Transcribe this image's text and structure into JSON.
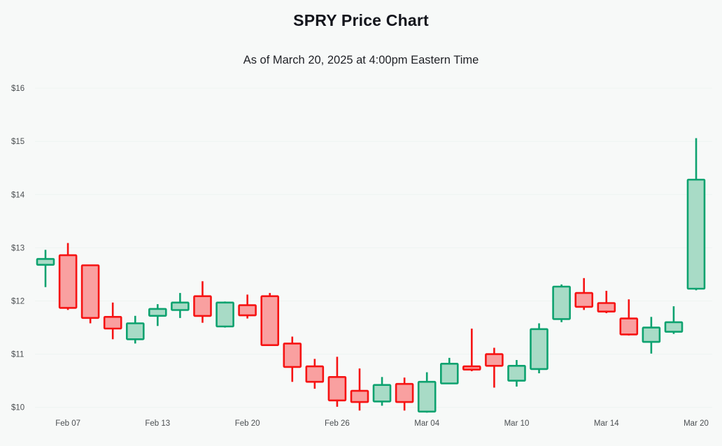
{
  "header": {
    "title": "SPRY Price Chart",
    "subtitle": "As of March 20, 2025 at 4:00pm Eastern Time"
  },
  "chart_data": {
    "type": "candlestick",
    "title": "SPRY Price Chart",
    "subtitle": "As of March 20, 2025 at 4:00pm Eastern Time",
    "xlabel": "",
    "ylabel": "",
    "grid": false,
    "legend_position": "none",
    "y_axis": {
      "ticks": [
        {
          "label": "$16",
          "value": 16
        },
        {
          "label": "$15",
          "value": 15
        },
        {
          "label": "$14",
          "value": 14
        },
        {
          "label": "$13",
          "value": 13
        },
        {
          "label": "$12",
          "value": 12
        },
        {
          "label": "$11",
          "value": 11
        },
        {
          "label": "$10",
          "value": 10
        }
      ],
      "range": [
        9.85,
        16.2
      ],
      "currency": "USD"
    },
    "x_axis": {
      "ticks": [
        {
          "label": "Feb 07",
          "candle_index": 1
        },
        {
          "label": "Feb 13",
          "candle_index": 5
        },
        {
          "label": "Feb 20",
          "candle_index": 9
        },
        {
          "label": "Feb 26",
          "candle_index": 13
        },
        {
          "label": "Mar 04",
          "candle_index": 17
        },
        {
          "label": "Mar 10",
          "candle_index": 21
        },
        {
          "label": "Mar 14",
          "candle_index": 25
        },
        {
          "label": "Mar 20",
          "candle_index": 29
        }
      ]
    },
    "colors": {
      "up_stroke": "#0da26f",
      "up_fill": "#a8dbc6",
      "down_stroke": "#f61313",
      "down_fill": "#f9a0a0",
      "axis_text": "#4b4f52",
      "background": "#f7f9f8"
    },
    "candles": [
      {
        "date": "Feb 06",
        "open": 12.68,
        "high": 12.96,
        "low": 12.26,
        "close": 12.79
      },
      {
        "date": "Feb 07",
        "open": 12.86,
        "high": 13.09,
        "low": 11.83,
        "close": 11.87
      },
      {
        "date": "Feb 10",
        "open": 12.67,
        "high": 12.68,
        "low": 11.58,
        "close": 11.68
      },
      {
        "date": "Feb 11",
        "open": 11.7,
        "high": 11.97,
        "low": 11.28,
        "close": 11.48
      },
      {
        "date": "Feb 12",
        "open": 11.28,
        "high": 11.72,
        "low": 11.2,
        "close": 11.58
      },
      {
        "date": "Feb 13",
        "open": 11.72,
        "high": 11.94,
        "low": 11.53,
        "close": 11.85
      },
      {
        "date": "Feb 14",
        "open": 11.83,
        "high": 12.15,
        "low": 11.68,
        "close": 11.97
      },
      {
        "date": "Feb 18",
        "open": 12.09,
        "high": 12.37,
        "low": 11.59,
        "close": 11.72
      },
      {
        "date": "Feb 19",
        "open": 11.52,
        "high": 11.99,
        "low": 11.5,
        "close": 11.97
      },
      {
        "date": "Feb 20",
        "open": 11.92,
        "high": 12.12,
        "low": 11.67,
        "close": 11.73
      },
      {
        "date": "Feb 21",
        "open": 12.09,
        "high": 12.15,
        "low": 11.16,
        "close": 11.17
      },
      {
        "date": "Feb 24",
        "open": 11.2,
        "high": 11.33,
        "low": 10.48,
        "close": 10.76
      },
      {
        "date": "Feb 25",
        "open": 10.77,
        "high": 10.91,
        "low": 10.35,
        "close": 10.48
      },
      {
        "date": "Feb 26",
        "open": 10.57,
        "high": 10.95,
        "low": 10.01,
        "close": 10.13
      },
      {
        "date": "Feb 27",
        "open": 10.31,
        "high": 10.73,
        "low": 9.94,
        "close": 10.1
      },
      {
        "date": "Feb 28",
        "open": 10.11,
        "high": 10.57,
        "low": 10.03,
        "close": 10.42
      },
      {
        "date": "Mar 03",
        "open": 10.44,
        "high": 10.56,
        "low": 9.94,
        "close": 10.1
      },
      {
        "date": "Mar 04",
        "open": 9.92,
        "high": 10.66,
        "low": 9.9,
        "close": 10.48
      },
      {
        "date": "Mar 05",
        "open": 10.45,
        "high": 10.93,
        "low": 10.44,
        "close": 10.82
      },
      {
        "date": "Mar 06",
        "open": 10.77,
        "high": 11.48,
        "low": 10.68,
        "close": 10.71
      },
      {
        "date": "Mar 07",
        "open": 11.0,
        "high": 11.12,
        "low": 10.37,
        "close": 10.78
      },
      {
        "date": "Mar 10",
        "open": 10.5,
        "high": 10.89,
        "low": 10.39,
        "close": 10.78
      },
      {
        "date": "Mar 11",
        "open": 10.72,
        "high": 11.58,
        "low": 10.64,
        "close": 11.47
      },
      {
        "date": "Mar 12",
        "open": 11.66,
        "high": 12.31,
        "low": 11.6,
        "close": 12.27
      },
      {
        "date": "Mar 13",
        "open": 12.15,
        "high": 12.43,
        "low": 11.83,
        "close": 11.89
      },
      {
        "date": "Mar 14",
        "open": 11.96,
        "high": 12.19,
        "low": 11.77,
        "close": 11.8
      },
      {
        "date": "Mar 17",
        "open": 11.67,
        "high": 12.03,
        "low": 11.35,
        "close": 11.37
      },
      {
        "date": "Mar 18",
        "open": 11.23,
        "high": 11.7,
        "low": 11.01,
        "close": 11.5
      },
      {
        "date": "Mar 19",
        "open": 11.42,
        "high": 11.9,
        "low": 11.38,
        "close": 11.6
      },
      {
        "date": "Mar 20",
        "open": 12.23,
        "high": 15.06,
        "low": 12.2,
        "close": 14.28
      }
    ]
  }
}
